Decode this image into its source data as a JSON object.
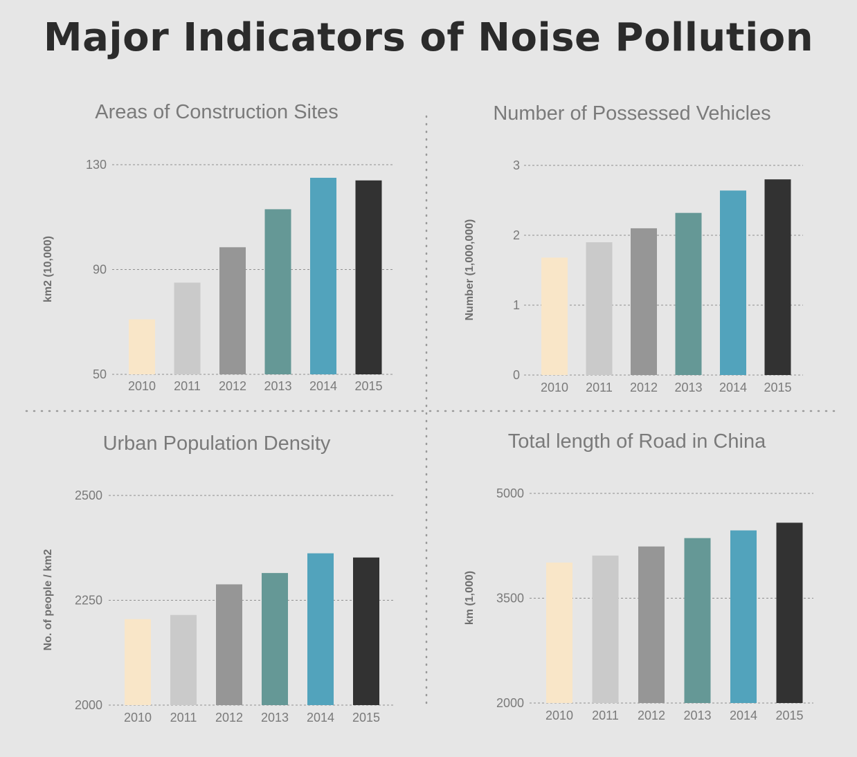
{
  "title": "Major Indicators of Noise Pollution",
  "colors": [
    "#f9e6c8",
    "#cacaca",
    "#969696",
    "#659896",
    "#52a3bc",
    "#323232"
  ],
  "chart_data": [
    {
      "type": "bar",
      "title": "Areas of Construction Sites",
      "ylabel": "km2 (10,000)",
      "categories": [
        "2010",
        "2011",
        "2012",
        "2013",
        "2014",
        "2015"
      ],
      "values": [
        71,
        85,
        98.5,
        113,
        125,
        124
      ],
      "ylim": [
        50,
        130
      ],
      "yticks": [
        "50",
        "90",
        "130"
      ],
      "grid": true
    },
    {
      "type": "bar",
      "title": "Number of Possessed Vehicles",
      "ylabel": "Number (1,000,000)",
      "categories": [
        "2010",
        "2011",
        "2012",
        "2013",
        "2014",
        "2015"
      ],
      "values": [
        1.68,
        1.9,
        2.1,
        2.32,
        2.64,
        2.8
      ],
      "ylim": [
        0,
        3
      ],
      "yticks": [
        "0",
        "1",
        "2",
        "3"
      ],
      "grid": true
    },
    {
      "type": "bar",
      "title": "Urban Population Density",
      "ylabel": "No. of people / km2",
      "categories": [
        "2010",
        "2011",
        "2012",
        "2013",
        "2014",
        "2015"
      ],
      "values": [
        2205,
        2215,
        2288,
        2315,
        2362,
        2352
      ],
      "ylim": [
        2000,
        2500
      ],
      "yticks": [
        "2000",
        "2250",
        "2500"
      ],
      "grid": true
    },
    {
      "type": "bar",
      "title": "Total length of Road in China",
      "ylabel": "km (1,000)",
      "categories": [
        "2010",
        "2011",
        "2012",
        "2013",
        "2014",
        "2015"
      ],
      "values": [
        4010,
        4110,
        4240,
        4360,
        4470,
        4580
      ],
      "ylim": [
        2000,
        5000
      ],
      "yticks": [
        "2000",
        "3500",
        "5000"
      ],
      "grid": true
    }
  ]
}
